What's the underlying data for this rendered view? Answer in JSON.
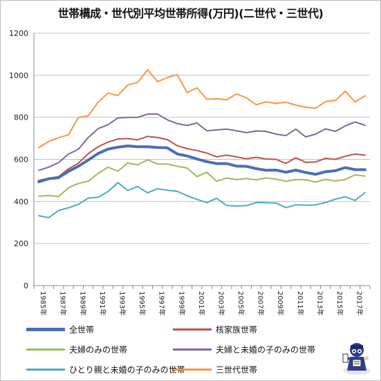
{
  "chart_data": {
    "type": "line",
    "title": "世帯構成・世代別平均世帯所得(万円)(二世代・三世代)",
    "x": [
      1985,
      1986,
      1987,
      1988,
      1989,
      1990,
      1991,
      1992,
      1993,
      1994,
      1995,
      1996,
      1997,
      1998,
      1999,
      2000,
      2001,
      2002,
      2003,
      2004,
      2005,
      2006,
      2007,
      2008,
      2009,
      2010,
      2011,
      2012,
      2013,
      2014,
      2015,
      2016,
      2017,
      2018
    ],
    "x_tick_labels": [
      "1985年",
      "1987年",
      "1989年",
      "1991年",
      "1993年",
      "1995年",
      "1997年",
      "1999年",
      "2001年",
      "2003年",
      "2005年",
      "2007年",
      "2009年",
      "2011年",
      "2013年",
      "2015年",
      "2017年"
    ],
    "ylim": [
      0,
      1200
    ],
    "y_ticks": [
      0,
      200,
      400,
      600,
      800,
      1000,
      1200
    ],
    "grid": true,
    "legend_position": "bottom",
    "series": [
      {
        "name": "全世帯",
        "color": "#4a6fb5",
        "width": 4,
        "values": [
          493,
          508,
          513,
          543,
          567,
          597,
          628,
          649,
          658,
          664,
          660,
          660,
          657,
          655,
          626,
          616,
          602,
          589,
          580,
          580,
          568,
          567,
          556,
          548,
          549,
          539,
          549,
          538,
          529,
          541,
          546,
          561,
          551,
          551
        ]
      },
      {
        "name": "核家族世帯",
        "color": "#c0504d",
        "width": 2,
        "values": [
          500,
          510,
          518,
          555,
          582,
          627,
          660,
          682,
          697,
          699,
          693,
          709,
          704,
          694,
          665,
          651,
          642,
          630,
          612,
          620,
          612,
          603,
          610,
          602,
          600,
          581,
          608,
          586,
          588,
          605,
          600,
          615,
          625,
          620
        ]
      },
      {
        "name": "夫婦のみの世帯",
        "color": "#9bbb59",
        "width": 2,
        "values": [
          425,
          428,
          423,
          465,
          486,
          496,
          533,
          563,
          544,
          583,
          574,
          598,
          578,
          578,
          567,
          559,
          518,
          539,
          496,
          511,
          504,
          509,
          503,
          512,
          506,
          496,
          504,
          503,
          492,
          505,
          497,
          504,
          527,
          520
        ]
      },
      {
        "name": "夫婦と未婚の子のみの世帯",
        "color": "#8064a2",
        "width": 2,
        "values": [
          548,
          563,
          585,
          625,
          648,
          704,
          746,
          765,
          797,
          800,
          800,
          815,
          816,
          788,
          770,
          761,
          773,
          736,
          740,
          744,
          736,
          727,
          735,
          733,
          720,
          713,
          744,
          707,
          720,
          745,
          733,
          759,
          778,
          762
        ]
      },
      {
        "name": "ひとり親と未婚の子のみの世帯",
        "color": "#4bacc6",
        "width": 2,
        "values": [
          332,
          323,
          357,
          370,
          386,
          416,
          420,
          447,
          490,
          452,
          471,
          441,
          461,
          453,
          448,
          427,
          410,
          395,
          415,
          381,
          378,
          380,
          395,
          394,
          392,
          371,
          384,
          382,
          384,
          395,
          411,
          422,
          405,
          442
        ]
      },
      {
        "name": "三世代世帯",
        "color": "#f79646",
        "width": 2,
        "values": [
          656,
          685,
          703,
          717,
          800,
          807,
          872,
          915,
          903,
          954,
          966,
          1026,
          970,
          989,
          1003,
          918,
          940,
          886,
          888,
          883,
          911,
          893,
          860,
          874,
          866,
          872,
          858,
          848,
          843,
          875,
          880,
          924,
          873,
          902
        ]
      }
    ]
  },
  "icons": {
    "mascot": "reporter-mascot-icon"
  }
}
